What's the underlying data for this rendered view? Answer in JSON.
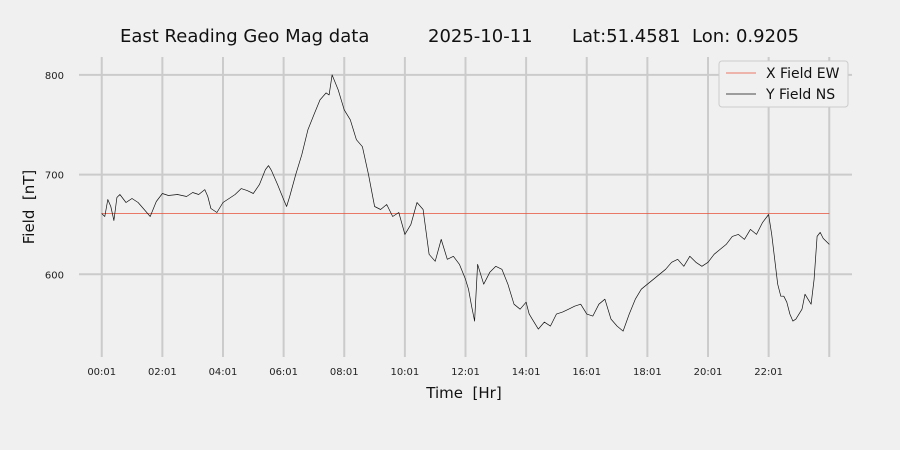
{
  "title": {
    "site": "East Reading Geo Mag data",
    "date": "2025-10-11",
    "location": "Lat:51.4581  Lon: 0.9205"
  },
  "chart_data": {
    "type": "line",
    "xlabel": "Time  [Hr]",
    "ylabel": "Field  [nT]",
    "x_unit": "hours",
    "x_ticks": [
      {
        "x": 0,
        "label": "00:01"
      },
      {
        "x": 2,
        "label": "02:01"
      },
      {
        "x": 4,
        "label": "04:01"
      },
      {
        "x": 6,
        "label": "06:01"
      },
      {
        "x": 8,
        "label": "08:01"
      },
      {
        "x": 10,
        "label": "10:01"
      },
      {
        "x": 12,
        "label": "12:01"
      },
      {
        "x": 14,
        "label": "14:01"
      },
      {
        "x": 16,
        "label": "16:01"
      },
      {
        "x": 18,
        "label": "18:01"
      },
      {
        "x": 20,
        "label": "20:01"
      },
      {
        "x": 22,
        "label": "22:01"
      }
    ],
    "y_ticks": [
      {
        "y": 600,
        "label": "600"
      },
      {
        "y": 700,
        "label": "700"
      },
      {
        "y": 800,
        "label": "800"
      }
    ],
    "xlim": [
      -0.75,
      24.75
    ],
    "ylim": [
      517,
      820
    ],
    "grid": true,
    "legend_position": "top-right",
    "series": [
      {
        "name": "X Field EW",
        "color": "#e8503a",
        "x": [
          0,
          24
        ],
        "y": [
          661,
          661
        ]
      },
      {
        "name": "Y Field NS",
        "color": "#111111",
        "x": [
          0.0,
          0.1,
          0.2,
          0.3,
          0.4,
          0.5,
          0.6,
          0.8,
          1.0,
          1.2,
          1.4,
          1.6,
          1.8,
          2.0,
          2.2,
          2.5,
          2.8,
          3.0,
          3.2,
          3.4,
          3.5,
          3.6,
          3.8,
          4.0,
          4.2,
          4.4,
          4.6,
          4.8,
          5.0,
          5.2,
          5.4,
          5.5,
          5.6,
          5.8,
          6.0,
          6.1,
          6.2,
          6.4,
          6.6,
          6.8,
          7.0,
          7.2,
          7.4,
          7.5,
          7.6,
          7.8,
          8.0,
          8.2,
          8.4,
          8.6,
          8.8,
          9.0,
          9.2,
          9.4,
          9.6,
          9.8,
          10.0,
          10.2,
          10.4,
          10.6,
          10.8,
          11.0,
          11.2,
          11.4,
          11.6,
          11.8,
          12.0,
          12.1,
          12.2,
          12.3,
          12.4,
          12.6,
          12.8,
          13.0,
          13.2,
          13.4,
          13.6,
          13.8,
          14.0,
          14.1,
          14.2,
          14.4,
          14.6,
          14.8,
          15.0,
          15.2,
          15.4,
          15.6,
          15.8,
          16.0,
          16.2,
          16.4,
          16.6,
          16.8,
          17.0,
          17.2,
          17.4,
          17.6,
          17.8,
          18.0,
          18.2,
          18.4,
          18.6,
          18.8,
          19.0,
          19.2,
          19.4,
          19.6,
          19.8,
          20.0,
          20.2,
          20.4,
          20.6,
          20.8,
          21.0,
          21.2,
          21.4,
          21.6,
          21.8,
          22.0,
          22.1,
          22.2,
          22.3,
          22.4,
          22.5,
          22.6,
          22.7,
          22.8,
          22.9,
          23.0,
          23.1,
          23.2,
          23.3,
          23.4,
          23.5,
          23.6,
          23.7,
          23.8,
          24.0
        ],
        "y": [
          661,
          658,
          675,
          668,
          654,
          677,
          680,
          672,
          676,
          672,
          665,
          658,
          673,
          681,
          679,
          680,
          678,
          682,
          680,
          685,
          678,
          666,
          662,
          672,
          676,
          680,
          686,
          684,
          681,
          690,
          705,
          709,
          704,
          690,
          675,
          668,
          678,
          700,
          720,
          745,
          760,
          775,
          782,
          780,
          800,
          785,
          765,
          755,
          735,
          728,
          700,
          668,
          665,
          670,
          658,
          662,
          640,
          650,
          672,
          665,
          620,
          613,
          635,
          615,
          618,
          610,
          595,
          585,
          568,
          553,
          610,
          590,
          602,
          608,
          605,
          590,
          570,
          565,
          572,
          560,
          555,
          545,
          552,
          548,
          560,
          562,
          565,
          568,
          570,
          560,
          558,
          570,
          575,
          555,
          548,
          543,
          560,
          575,
          585,
          590,
          595,
          600,
          605,
          612,
          615,
          608,
          618,
          612,
          608,
          612,
          620,
          625,
          630,
          638,
          640,
          635,
          645,
          640,
          652,
          660,
          640,
          615,
          590,
          578,
          578,
          572,
          560,
          553,
          555,
          560,
          565,
          580,
          575,
          570,
          595,
          638,
          642,
          636,
          630
        ]
      }
    ]
  }
}
